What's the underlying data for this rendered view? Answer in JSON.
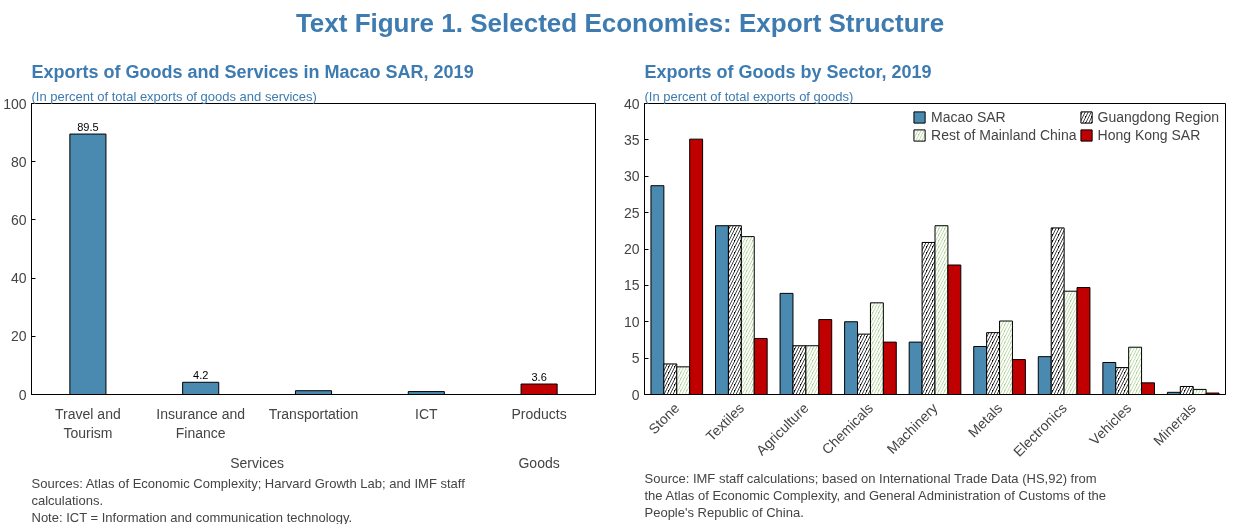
{
  "chart_data": [
    {
      "type": "other",
      "title": "Text Figure 1. Selected Economies: Export Structure"
    },
    {
      "type": "bar",
      "title": "Exports of Goods and Services in Macao SAR, 2019",
      "subtitle": "(In percent of total exports of goods and services)",
      "categories": [
        "Travel and Tourism",
        "Insurance and Finance",
        "Transportation",
        "ICT",
        "Products"
      ],
      "values": [
        89.5,
        4.2,
        1.3,
        1.0,
        3.6
      ],
      "colors": [
        "#4a8ab0",
        "#4a8ab0",
        "#4a8ab0",
        "#4a8ab0",
        "#c00000"
      ],
      "value_labels": [
        "89.5",
        "4.2",
        null,
        null,
        "3.6"
      ],
      "ylim": [
        0,
        100
      ],
      "yticks": [
        0,
        20,
        40,
        60,
        80,
        100
      ],
      "grid": false,
      "annotations": [
        "Services",
        "Goods",
        "Sources: Atlas of Economic Complexity; Harvard Growth Lab; and IMF staff calculations.",
        "Note: ICT = Information and communication technology."
      ]
    },
    {
      "type": "bar",
      "title": "Exports of Goods by Sector, 2019",
      "subtitle": "(In percent of total exports of goods)",
      "categories": [
        "Stone",
        "Textiles",
        "Agriculture",
        "Chemicals",
        "Machinery",
        "Metals",
        "Electronics",
        "Vehicles",
        "Minerals"
      ],
      "series": [
        {
          "name": "Macao SAR",
          "color": "#4a8ab0",
          "values": [
            28.7,
            23.2,
            13.9,
            10.0,
            7.2,
            6.6,
            5.2,
            4.4,
            0.3
          ]
        },
        {
          "name": "Guangdong Region",
          "color": "#000000",
          "values": [
            4.2,
            23.2,
            6.7,
            8.3,
            20.9,
            8.5,
            22.9,
            3.7,
            1.1
          ]
        },
        {
          "name": "Rest of Mainland China",
          "color": "#a9d18e",
          "values": [
            3.8,
            21.7,
            6.7,
            12.6,
            23.2,
            10.1,
            14.2,
            6.5,
            0.7
          ]
        },
        {
          "name": "Hong Kong SAR",
          "color": "#c00000",
          "values": [
            35.1,
            7.7,
            10.3,
            7.2,
            17.8,
            4.8,
            14.7,
            1.6,
            0.2
          ]
        }
      ],
      "ylim": [
        0,
        40
      ],
      "yticks": [
        0,
        5,
        10,
        15,
        20,
        25,
        30,
        35,
        40
      ],
      "grid": false,
      "legend": "top right",
      "annotations": [
        "Source: IMF staff calculations; based on International Trade Data (HS,92) from the Atlas of Economic Complexity, and General Administration of Customs of the People's Republic of China."
      ]
    }
  ]
}
